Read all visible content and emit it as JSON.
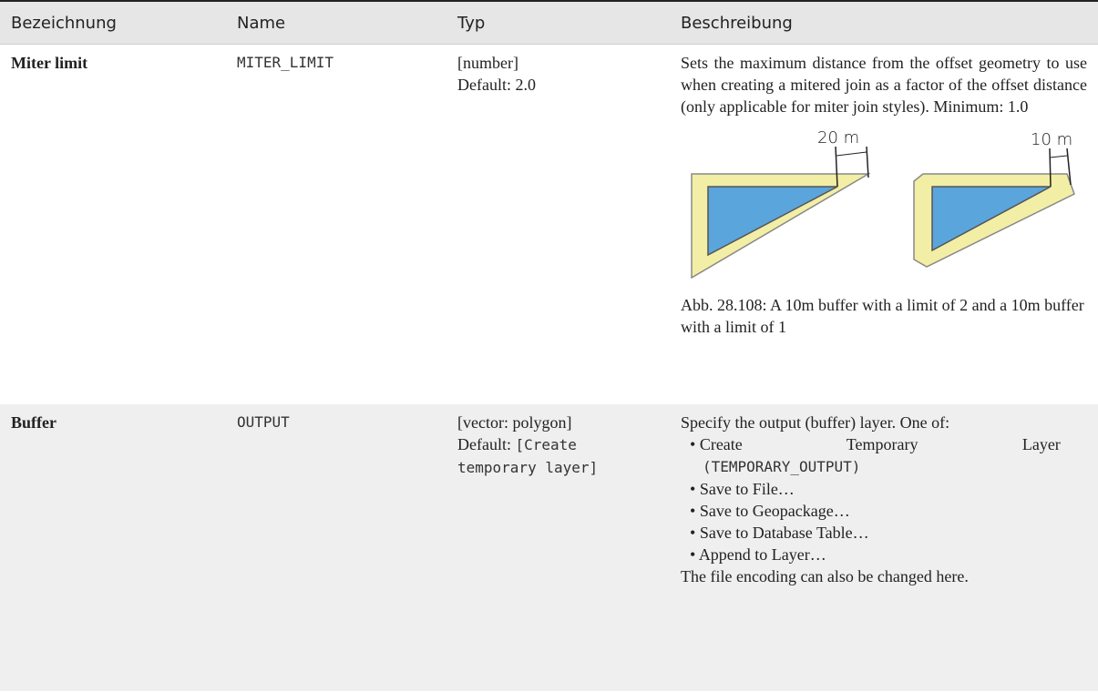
{
  "table": {
    "header": [
      "Bezeichnung",
      "Name",
      "Typ",
      "Beschreibung"
    ],
    "rows": [
      {
        "label": "Miter limit",
        "name": "MITER_LIMIT",
        "type": "[number]",
        "default": "Default: 2.0",
        "description": "Sets the maximum distance from the offset geometry to use when creating a mitered join as a factor of the offset distance (only applicable for miter join styles). Minimum: 1.0",
        "figure": {
          "labels": [
            "20 m",
            "10 m"
          ],
          "caption": "Abb. 28.108: A 10m buffer with a limit of 2 and a 10m buffer with a limit of 1"
        }
      },
      {
        "label": "Buffer",
        "name": "OUTPUT",
        "type": "[vector: polygon]",
        "default_prefix": "Default:",
        "default": "[Create temporary layer]",
        "description": "Specify the output (buffer) layer. One of:",
        "options": [
          {
            "text": "Create Temporary Layer",
            "code": "(TEMPORARY_OUTPUT)"
          },
          "Save to File…",
          "Save to Geopackage…",
          "Save to Database Table…",
          "Append to Layer…"
        ],
        "note": "The file encoding can also be changed here."
      }
    ]
  }
}
